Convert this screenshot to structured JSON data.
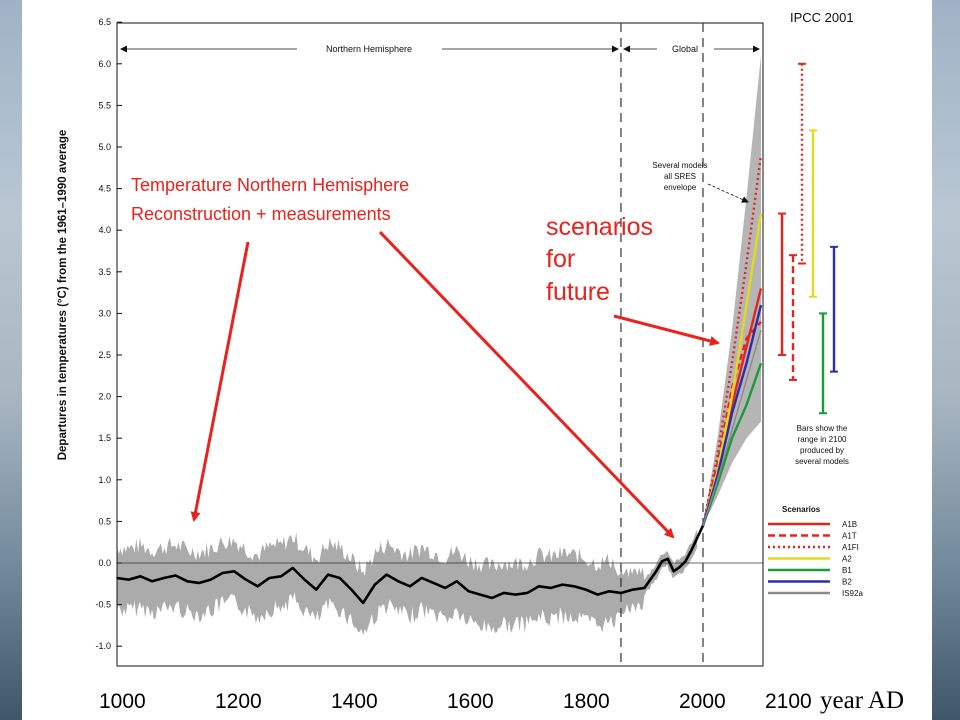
{
  "source": "IPCC 2001",
  "annotations": {
    "reconstruction_line1": "Temperature Northern Hemisphere",
    "reconstruction_line2": "Reconstruction + measurements",
    "scenarios_line1": "scenarios",
    "scenarios_line2": "for",
    "scenarios_line3": "future",
    "envelope_line1": "Several models",
    "envelope_line2": "all SRES",
    "envelope_line3": "envelope",
    "bars_line1": "Bars show the",
    "bars_line2": "range in 2100",
    "bars_line3": "produced by",
    "bars_line4": "several models",
    "x_unit": "year AD"
  },
  "colors": {
    "arrow_red": "#e8221c",
    "gray_band": "#a6a6a6",
    "A1B": "#e8221c",
    "A1T": "#e8221c",
    "A1FI": "#e8221c",
    "A2": "#e6d81e",
    "B1": "#1a9a3a",
    "B2": "#2a2fa8",
    "IS92a": "#8a8a8a"
  },
  "chart_data": {
    "type": "line",
    "ylabel": "Departures in temperatures (°C) from the 1961–1990 average",
    "xlabel": "year AD",
    "ylim": [
      -1.2,
      6.5
    ],
    "xlim": [
      1000,
      2100
    ],
    "y_ticks": [
      "6.5",
      "6.0",
      "5.5",
      "5.0",
      "4.5",
      "4.0",
      "3.5",
      "3.0",
      "2.5",
      "2.0",
      "1.5",
      "1.0",
      "0.5",
      "0.0",
      "-0.5",
      "-1.0"
    ],
    "x_ticks": [
      "1000",
      "1200",
      "1400",
      "1600",
      "1800",
      "2000",
      "2100"
    ],
    "grid": false,
    "region_labels": [
      "Northern Hemisphere",
      "Global"
    ],
    "region_boundary": 1860,
    "present_marker": 2000,
    "reconstruction": {
      "x": [
        1000,
        1020,
        1040,
        1060,
        1080,
        1100,
        1120,
        1140,
        1160,
        1180,
        1200,
        1220,
        1240,
        1260,
        1280,
        1300,
        1320,
        1340,
        1360,
        1380,
        1400,
        1420,
        1440,
        1460,
        1480,
        1500,
        1520,
        1540,
        1560,
        1580,
        1600,
        1620,
        1640,
        1660,
        1680,
        1700,
        1720,
        1740,
        1760,
        1780,
        1800,
        1820,
        1840,
        1860,
        1880,
        1900,
        1920,
        1930,
        1940,
        1950,
        1960,
        1970,
        1980,
        1990,
        2000
      ],
      "values": [
        -0.18,
        -0.2,
        -0.16,
        -0.22,
        -0.18,
        -0.15,
        -0.22,
        -0.24,
        -0.2,
        -0.12,
        -0.1,
        -0.2,
        -0.28,
        -0.18,
        -0.16,
        -0.06,
        -0.2,
        -0.32,
        -0.14,
        -0.18,
        -0.32,
        -0.48,
        -0.26,
        -0.14,
        -0.22,
        -0.28,
        -0.18,
        -0.24,
        -0.3,
        -0.22,
        -0.34,
        -0.38,
        -0.42,
        -0.36,
        -0.38,
        -0.36,
        -0.28,
        -0.3,
        -0.26,
        -0.28,
        -0.32,
        -0.38,
        -0.34,
        -0.36,
        -0.32,
        -0.3,
        -0.1,
        0.02,
        0.05,
        -0.1,
        -0.05,
        0.02,
        0.15,
        0.3,
        0.45
      ]
    },
    "scenarios_to_2100": {
      "x": [
        2000,
        2025,
        2050,
        2075,
        2100
      ],
      "series": [
        {
          "name": "A1B",
          "values": [
            0.45,
            1.1,
            1.9,
            2.6,
            3.3
          ]
        },
        {
          "name": "A1T",
          "values": [
            0.45,
            1.2,
            2.1,
            2.7,
            2.9
          ]
        },
        {
          "name": "A1FI",
          "values": [
            0.45,
            1.3,
            2.4,
            3.6,
            4.9
          ]
        },
        {
          "name": "A2",
          "values": [
            0.45,
            1.1,
            2.0,
            3.1,
            4.2
          ]
        },
        {
          "name": "B1",
          "values": [
            0.45,
            0.95,
            1.5,
            1.9,
            2.4
          ]
        },
        {
          "name": "B2",
          "values": [
            0.45,
            1.05,
            1.8,
            2.4,
            3.1
          ]
        },
        {
          "name": "IS92a",
          "values": [
            0.45,
            1.0,
            1.6,
            2.2,
            2.8
          ]
        }
      ],
      "envelope_low": [
        0.45,
        0.8,
        1.2,
        1.5,
        1.7
      ],
      "envelope_high": [
        0.45,
        1.5,
        2.8,
        4.4,
        6.1
      ]
    },
    "range_bars_2100": [
      {
        "name": "A1B",
        "low": 2.5,
        "high": 4.2,
        "style": "solid"
      },
      {
        "name": "A1T",
        "low": 2.2,
        "high": 3.7,
        "style": "dashed"
      },
      {
        "name": "A1FI",
        "low": 3.6,
        "high": 6.0,
        "style": "dotted"
      },
      {
        "name": "A2",
        "low": 3.2,
        "high": 5.2,
        "style": "solid"
      },
      {
        "name": "B1",
        "low": 1.8,
        "high": 3.0,
        "style": "solid"
      },
      {
        "name": "B2",
        "low": 2.3,
        "high": 3.8,
        "style": "solid"
      }
    ],
    "legend": {
      "title": "Scenarios",
      "entries": [
        {
          "name": "A1B",
          "style": "solid"
        },
        {
          "name": "A1T",
          "style": "dashed"
        },
        {
          "name": "A1FI",
          "style": "dotted"
        },
        {
          "name": "A2",
          "style": "solid"
        },
        {
          "name": "B1",
          "style": "solid"
        },
        {
          "name": "B2",
          "style": "solid"
        },
        {
          "name": "IS92a",
          "style": "solid"
        }
      ]
    }
  }
}
